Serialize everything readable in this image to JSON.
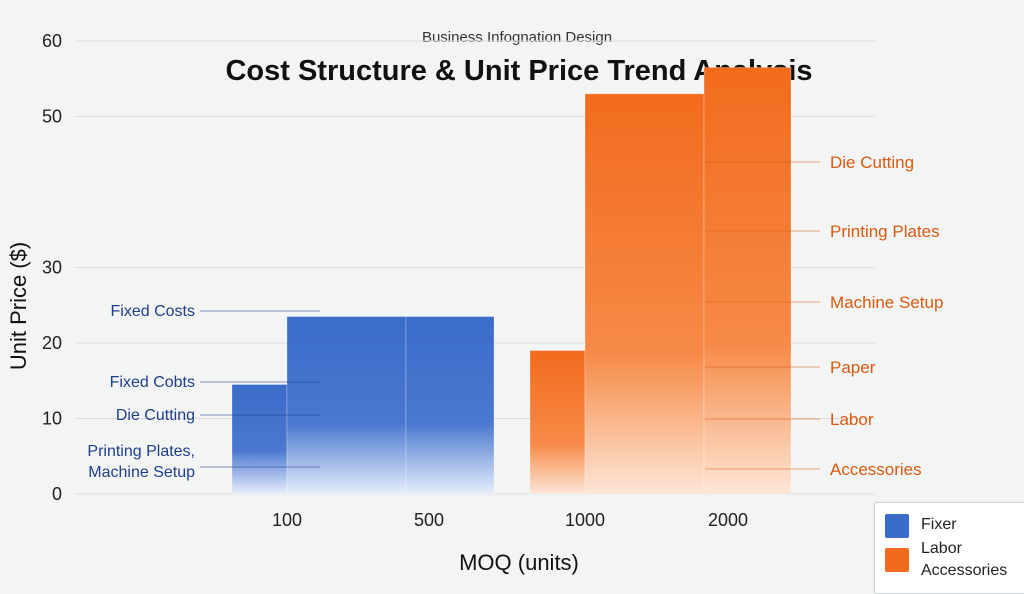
{
  "header": {
    "subtitle": "Business Infognation Design",
    "title": "Cost Structure & Unit Price Trend Analysis"
  },
  "colors": {
    "blue": "#3a6cc9",
    "orange": "#f26b1d",
    "blue_text": "#1f3f8a",
    "orange_text": "#d85a10"
  },
  "chart_data": {
    "type": "bar",
    "xlabel": "MOQ (units)",
    "ylabel": "Unit Price ($)",
    "ylim": [
      0,
      60
    ],
    "yticks": [
      0,
      10,
      20,
      30,
      50,
      60
    ],
    "grid": true,
    "categories": [
      "100",
      "500",
      "1000",
      "2000"
    ],
    "bars": [
      {
        "series": "blue",
        "from": 60,
        "to": 100,
        "value": 14.5
      },
      {
        "series": "blue",
        "from": 100,
        "to": 300,
        "value": 23.5
      },
      {
        "series": "blue",
        "from": 300,
        "to": 500,
        "value": 23.5
      },
      {
        "series": "orange",
        "from": 700,
        "to": 1000,
        "value": 19
      },
      {
        "series": "orange",
        "from": 1000,
        "to": 1500,
        "value": 53
      },
      {
        "series": "orange",
        "from": 1500,
        "to": 2500,
        "value": 56.5
      }
    ],
    "left_annotations": [
      {
        "text": "Fixed Costs",
        "y": 24.5
      },
      {
        "text": "Fixed Cobts",
        "y": 15.3
      },
      {
        "text": "Die Cutting",
        "y": 10.5
      },
      {
        "text": "Printing Plates,",
        "y": 6.2
      },
      {
        "text": "Machine Setup",
        "y": 3.5
      }
    ],
    "right_annotations": [
      {
        "text": "Die Cutting",
        "y": 54.5
      },
      {
        "text": "Printing Plates",
        "y": 43.3
      },
      {
        "text": "Machine Setup",
        "y": 31.6
      },
      {
        "text": "Paper",
        "y": 23.6
      },
      {
        "text": "Labor",
        "y": 16.4
      },
      {
        "text": "Accessories",
        "y": 4.3
      }
    ],
    "legend": {
      "placement": "bottom-right",
      "entries": [
        "Fixer",
        "Labor",
        "Accessories"
      ]
    }
  }
}
